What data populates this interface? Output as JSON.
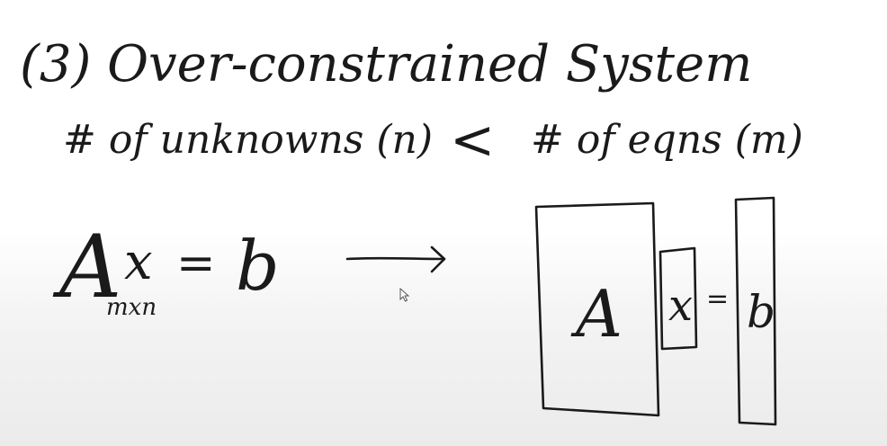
{
  "board": {
    "heading": "(3) Over-constrained System",
    "condition": {
      "left": "# of unknowns (n)",
      "relation": "<",
      "right": "# of eqns (m)"
    },
    "equation": {
      "matrix": "A",
      "subscript": "mxn",
      "vector": "x",
      "equals": "=",
      "rhs": "b"
    },
    "block_diagram": {
      "matrix_label": "A",
      "vector_label": "x",
      "equals": "=",
      "rhs_label": "b"
    }
  },
  "cursor": {
    "icon": "pointer-cursor-icon"
  }
}
